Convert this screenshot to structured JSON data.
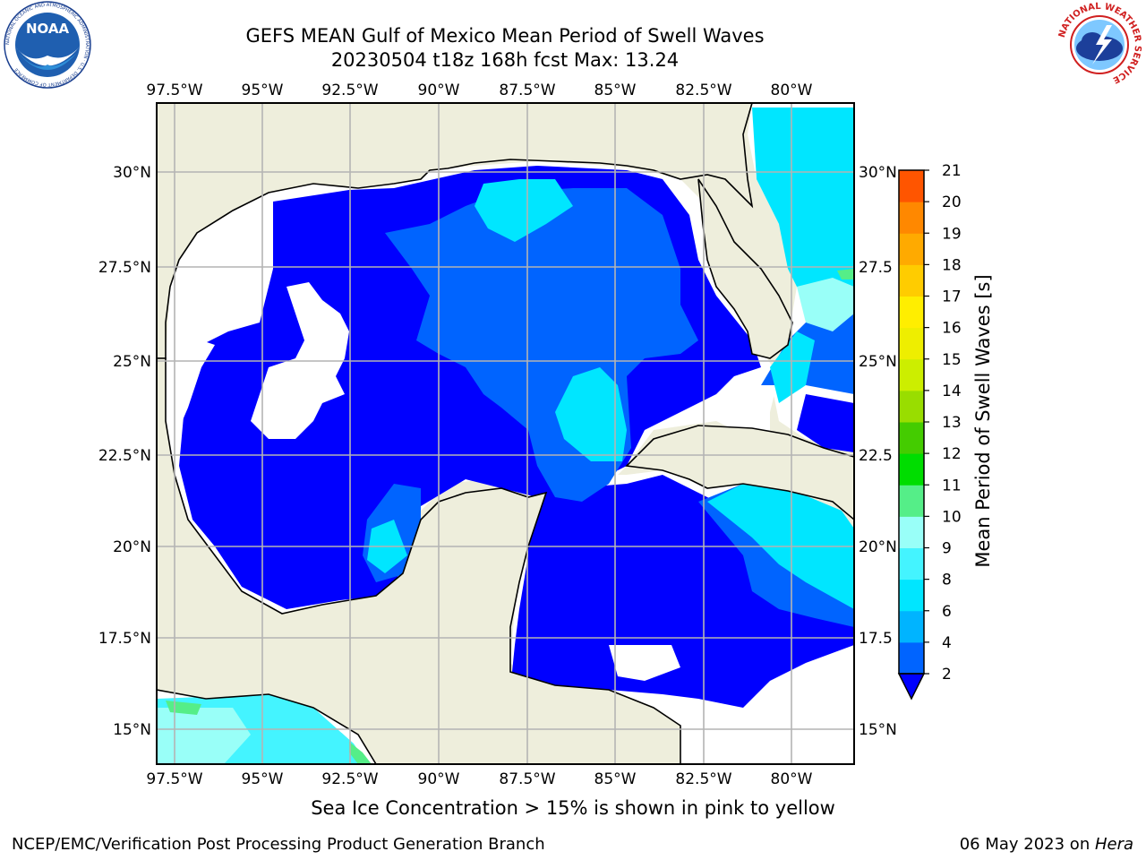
{
  "header": {
    "title_line1": "GEFS MEAN Gulf of Mexico Mean Period of Swell Waves",
    "title_line2": "20230504 t18z 168h fcst   Max: 13.24"
  },
  "logos": {
    "noaa_text": "NOAA",
    "noaa_ring_text": "NATIONAL OCEANIC AND ATMOSPHERIC ADMINISTRATION · U.S. DEPARTMENT OF COMMERCE",
    "nws_ring_text": "NATIONAL WEATHER SERVICE"
  },
  "map": {
    "lon_ticks": [
      "97.5°W",
      "95°W",
      "92.5°W",
      "90°W",
      "87.5°W",
      "85°W",
      "82.5°W",
      "80°W"
    ],
    "lat_ticks_left": [
      "30°N",
      "27.5°N",
      "25°N",
      "22.5°N",
      "20°N",
      "17.5°N",
      "15°N"
    ],
    "lat_ticks_right": [
      "30°N",
      "27.5",
      "25°N",
      "22.5",
      "20°N",
      "17.5",
      "15°N"
    ],
    "land_color": "#eeeedc",
    "grid_color": "#b4b4b4"
  },
  "colorbar": {
    "label": "Mean Period of Swell Waves [s]",
    "ticks": [
      "2",
      "4",
      "6",
      "8",
      "9",
      "10",
      "11",
      "12",
      "13",
      "14",
      "15",
      "16",
      "17",
      "18",
      "19",
      "20",
      "21"
    ],
    "colors": [
      "#0064ff",
      "#00b4ff",
      "#00e6ff",
      "#44f4ff",
      "#99fff8",
      "#55ee88",
      "#00dd00",
      "#44cc00",
      "#99dd00",
      "#ccee00",
      "#eeee00",
      "#ffee00",
      "#ffcc00",
      "#ffaa00",
      "#ff8800",
      "#ff5500",
      "#ff2200",
      "#ff0000"
    ],
    "extend_color": "#0000ff"
  },
  "footnote": "Sea Ice Concentration > 15% is shown in pink to yellow",
  "footer": {
    "left": "NCEP/EMC/Verification Post Processing Product Generation Branch",
    "right_date": "06 May 2023 on ",
    "right_machine": "Hera"
  }
}
